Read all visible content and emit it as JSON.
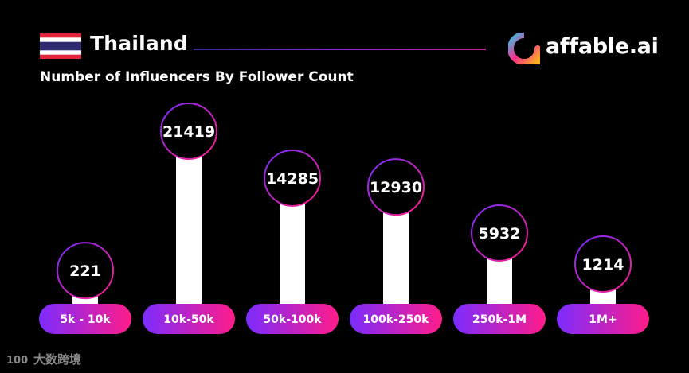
{
  "header": {
    "country": "Thailand",
    "flag_icon": "thailand-flag-icon",
    "brand": "affable.ai",
    "brand_icon": "affable-logo-icon",
    "subtitle": "Number of Influencers By Follower Count"
  },
  "chart_data": {
    "type": "bar",
    "title": "Number of Influencers By Follower Count",
    "categories": [
      "5k - 10k",
      "10k-50k",
      "50k-100k",
      "100k-250k",
      "250k-1M",
      "1M+"
    ],
    "values": [
      221,
      21419,
      14285,
      12930,
      5932,
      1214
    ],
    "xlabel": "",
    "ylabel": "",
    "ylim": [
      0,
      21419
    ],
    "grid": false,
    "legend": "none",
    "data_labels": true,
    "colors": {
      "bar": "#ffffff",
      "pill_start": "#7b2cff",
      "pill_end": "#ff1c8a",
      "circle_fill": "#000000",
      "circle_stroke_start": "#7b2cff",
      "circle_stroke_end": "#ff1c8a",
      "background": "#000000"
    }
  },
  "watermark": {
    "logo_text": "100",
    "text": "大数跨境"
  }
}
